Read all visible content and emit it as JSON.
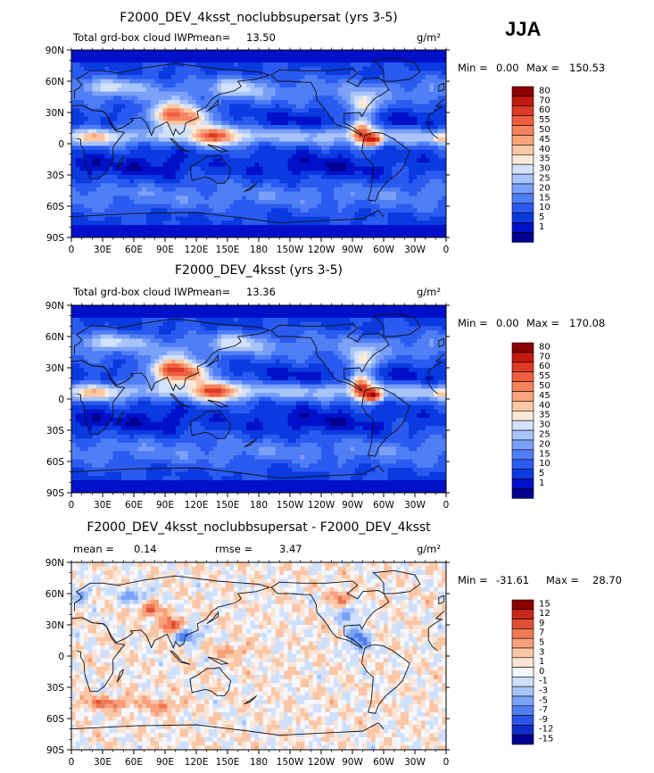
{
  "season_label": "JJA",
  "units_label": "g/m²",
  "x_ticks": [
    "0",
    "30E",
    "60E",
    "90E",
    "120E",
    "150E",
    "180",
    "150W",
    "120W",
    "90W",
    "60W",
    "30W",
    "0"
  ],
  "y_ticks": [
    "90N",
    "60N",
    "30N",
    "0",
    "30S",
    "60S",
    "90S"
  ],
  "colors": {
    "seq": [
      "#00008f",
      "#0010c8",
      "#0a3ae0",
      "#2a5aef",
      "#4f7ef5",
      "#7ba0f8",
      "#a8c4fb",
      "#d2e2fd",
      "#fbe8d8",
      "#fcc7a4",
      "#f9a47c",
      "#f5835e",
      "#ee5f3f",
      "#dc3b24",
      "#c2190f",
      "#8b0000"
    ],
    "diff": [
      "#00008f",
      "#0f2dc9",
      "#2a55e6",
      "#4f7ef2",
      "#7aa2f7",
      "#a8c3fa",
      "#cfe0fc",
      "#f5f7ff",
      "#fbe4d4",
      "#fbc6a6",
      "#f7a07b",
      "#ef7955",
      "#e04f34",
      "#c8261a",
      "#8b0000"
    ],
    "coast": "#111111"
  },
  "chart_data": [
    {
      "type": "heatmap",
      "title": "F2000_DEV_4ksst_noclubbsupersat (yrs 3-5)",
      "variable": "Total grd-box cloud IWP",
      "mean_label": "mean=",
      "mean": "13.50",
      "min_label": "Min =",
      "min": "0.00",
      "max_label": "Max =",
      "max": "150.53",
      "colorbar_levels": [
        "80",
        "70",
        "60",
        "55",
        "50",
        "45",
        "40",
        "35",
        "30",
        "25",
        "20",
        "15",
        "10",
        "5",
        "1"
      ],
      "x_range": [
        0,
        360
      ],
      "y_range": [
        -90,
        90
      ]
    },
    {
      "type": "heatmap",
      "title": "F2000_DEV_4ksst (yrs 3-5)",
      "variable": "Total grd-box cloud IWP",
      "mean_label": "mean=",
      "mean": "13.36",
      "min_label": "Min =",
      "min": "0.00",
      "max_label": "Max =",
      "max": "170.08",
      "colorbar_levels": [
        "80",
        "70",
        "60",
        "55",
        "50",
        "45",
        "40",
        "35",
        "30",
        "25",
        "20",
        "15",
        "10",
        "5",
        "1"
      ],
      "x_range": [
        0,
        360
      ],
      "y_range": [
        -90,
        90
      ]
    },
    {
      "type": "heatmap",
      "title": "F2000_DEV_4ksst_noclubbsupersat - F2000_DEV_4ksst",
      "mean_label": "mean =",
      "mean": "0.14",
      "rmse_label": "rmse =",
      "rmse": "3.47",
      "min_label": "Min =",
      "min": "-31.61",
      "max_label": "Max =",
      "max": "28.70",
      "colorbar_levels": [
        "15",
        "12",
        "9",
        "7",
        "5",
        "3",
        "1",
        "0",
        "-1",
        "-3",
        "-5",
        "-7",
        "-9",
        "-12",
        "-15"
      ],
      "x_range": [
        0,
        360
      ],
      "y_range": [
        -90,
        90
      ]
    }
  ]
}
